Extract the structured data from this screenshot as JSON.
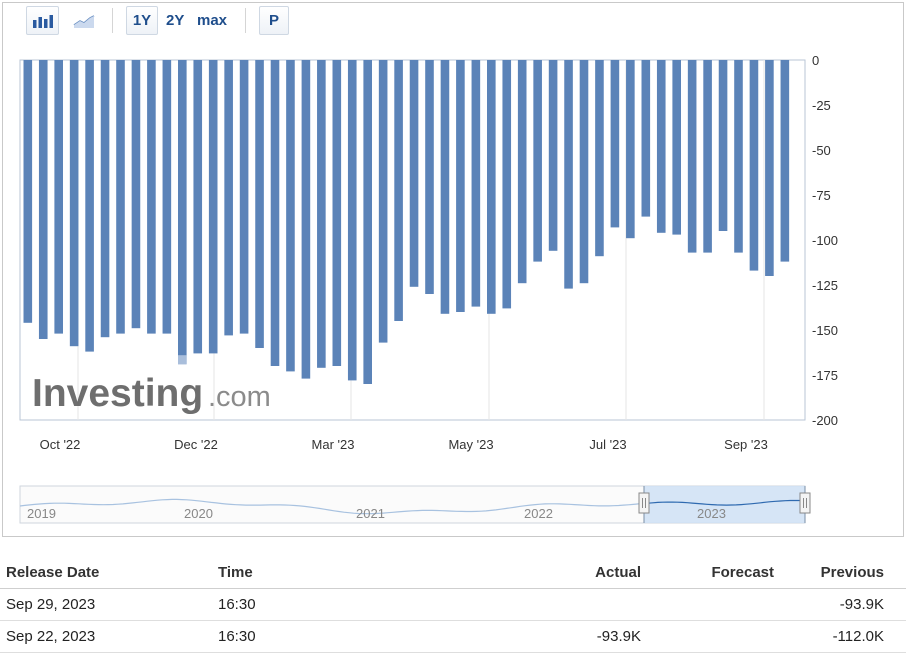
{
  "toolbar": {
    "bar_icon": "bar-chart-icon",
    "line_icon": "line-chart-icon",
    "ranges": [
      "1Y",
      "2Y",
      "max"
    ],
    "p_label": "P"
  },
  "watermark": {
    "brand": "Investing",
    "suffix": ".com"
  },
  "chart_data": {
    "type": "bar",
    "title": "",
    "xlabel": "",
    "ylabel": "",
    "ylim": [
      -200,
      0
    ],
    "y_ticks": [
      0,
      -25,
      -50,
      -75,
      -100,
      -125,
      -150,
      -175,
      -200
    ],
    "x_tick_labels": [
      "Oct '22",
      "Dec '22",
      "Mar '23",
      "May '23",
      "Jul '23",
      "Sep '23"
    ],
    "grid": true,
    "legend": "none",
    "bar_color": "#5b83b8",
    "highlight_color": "#a9bedb",
    "series": [
      {
        "values": [
          -146,
          -155,
          -152,
          -159,
          -162,
          -154,
          -152,
          -149,
          -152,
          -152,
          -169,
          -163,
          -163,
          -153,
          -152,
          -160,
          -170,
          -173,
          -177,
          -171,
          -170,
          -178,
          -180,
          -157,
          -145,
          -126,
          -130,
          -141,
          -140,
          -137,
          -141,
          -138,
          -124,
          -112,
          -106,
          -127,
          -124,
          -109,
          -93,
          -99,
          -87,
          -96,
          -97,
          -107,
          -107,
          -95,
          -107,
          -117,
          -120,
          -112
        ]
      }
    ]
  },
  "navigator": {
    "years": [
      "2019",
      "2020",
      "2021",
      "2022",
      "2023"
    ],
    "line_color": "#a8c2e0",
    "selection_color": "#cfe0f5"
  },
  "table": {
    "headers": [
      "Release Date",
      "Time",
      "Actual",
      "Forecast",
      "Previous"
    ],
    "rows": [
      [
        "Sep 29, 2023",
        "16:30",
        "",
        "",
        "-93.9K"
      ],
      [
        "Sep 22, 2023",
        "16:30",
        "-93.9K",
        "",
        "-112.0K"
      ]
    ]
  }
}
